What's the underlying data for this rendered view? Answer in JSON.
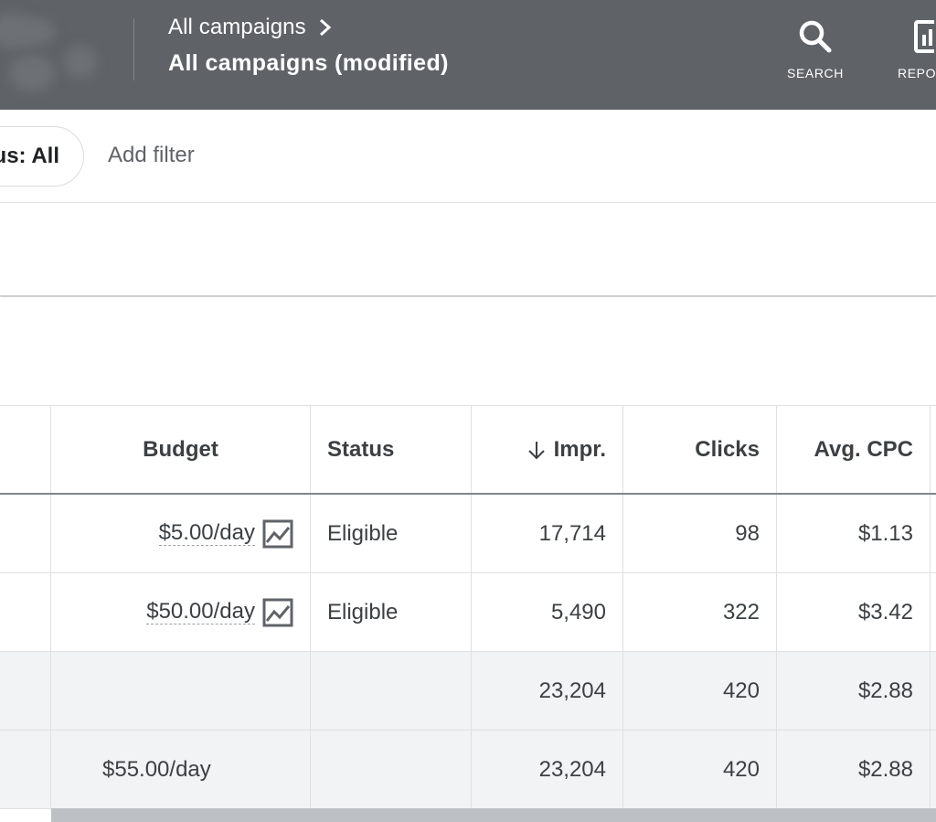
{
  "header": {
    "breadcrumb": "All campaigns",
    "title": "All campaigns (modified)",
    "tools": [
      {
        "label": "SEARCH",
        "icon": "search-icon"
      },
      {
        "label": "REPO",
        "icon": "reports-icon"
      }
    ],
    "bg_color": "#5f6368"
  },
  "filters": {
    "chip_label": "us: All",
    "add_filter_label": "Add filter"
  },
  "table": {
    "columns": [
      "",
      "Budget",
      "Status",
      "Impr.",
      "Clicks",
      "Avg. CPC"
    ],
    "sorted_column": "Impr.",
    "sort_direction": "descending",
    "rows": [
      {
        "budget": "$5.00/day",
        "status": "Eligible",
        "impr": "17,714",
        "clicks": "98",
        "avg_cpc": "$1.13"
      },
      {
        "budget": "$50.00/day",
        "status": "Eligible",
        "impr": "5,490",
        "clicks": "322",
        "avg_cpc": "$3.42"
      }
    ],
    "totals": [
      {
        "budget": "",
        "status": "",
        "impr": "23,204",
        "clicks": "420",
        "avg_cpc": "$2.88"
      },
      {
        "budget": "$55.00/day",
        "status": "",
        "impr": "23,204",
        "clicks": "420",
        "avg_cpc": "$2.88"
      }
    ]
  }
}
